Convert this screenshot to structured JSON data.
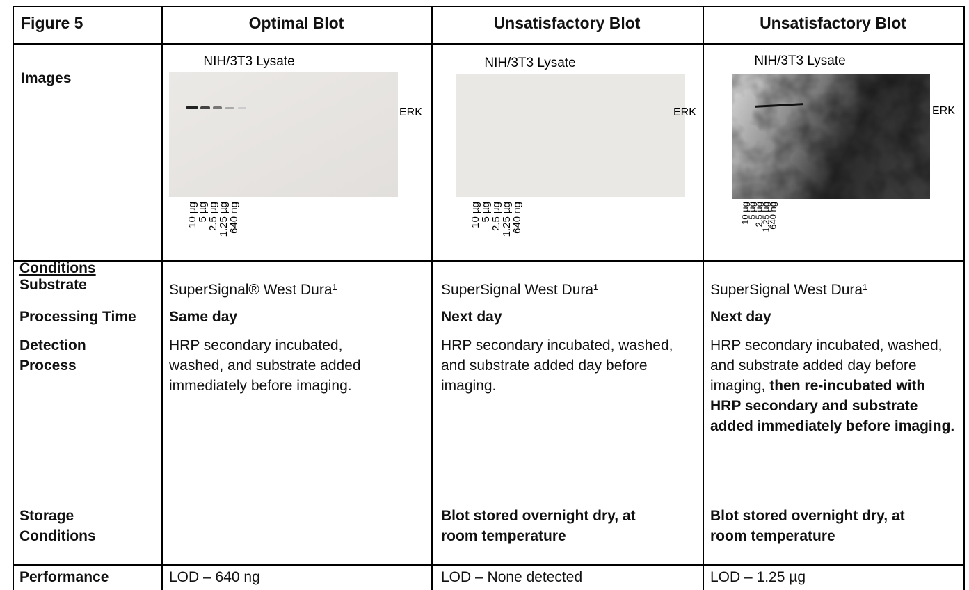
{
  "table": {
    "header": [
      "Figure 5",
      "Optimal Blot",
      "Unsatisfactory Blot",
      "Unsatisfactory Blot"
    ],
    "images": {
      "label": "Images",
      "panels": [
        {
          "title": "NIH/3T3 Lysate",
          "band": "ERK",
          "lanes": [
            "10 µg",
            "5 µg",
            "2.5 µg",
            "1.25 µg",
            "640 ng"
          ]
        },
        {
          "title": "NIH/3T3 Lysate",
          "band": "ERK",
          "lanes": [
            "10 µg",
            "5 µg",
            "2.5 µg",
            "1.25 µg",
            "640 ng"
          ]
        },
        {
          "title": "NIH/3T3 Lysate",
          "band": "ERK",
          "lanes": [
            "10 µg",
            "5 µg",
            "2.5 µg",
            "1.25 µg",
            "640 ng"
          ]
        }
      ]
    },
    "conditions_heading": "Conditions",
    "rows": [
      {
        "label": "Substrate",
        "cells": [
          "SuperSignal® West Dura¹",
          "SuperSignal West Dura¹",
          "SuperSignal West Dura¹"
        ]
      },
      {
        "label": "Processing Time",
        "cells": [
          "Same day",
          "Next day",
          "Next day"
        ]
      },
      {
        "label": "Detection Process",
        "cells": [
          "HRP secondary incubated, washed, and substrate added immediately before imaging.",
          "HRP secondary incubated, washed, and substrate added day before imaging.",
          "HRP secondary incubated, washed, and substrate added day before imaging,"
        ],
        "emphasis": "then re-incubated with HRP secondary and substrate added immediately before imaging."
      },
      {
        "label": "Storage Conditions",
        "cells": [
          null,
          "Blot stored overnight dry, at room temperature",
          "Blot stored overnight dry, at room temperature"
        ]
      },
      {
        "label": "Performance",
        "cells": [
          "LOD – 640 ng",
          "LOD – None detected",
          "LOD – 1.25 µg"
        ]
      }
    ]
  }
}
